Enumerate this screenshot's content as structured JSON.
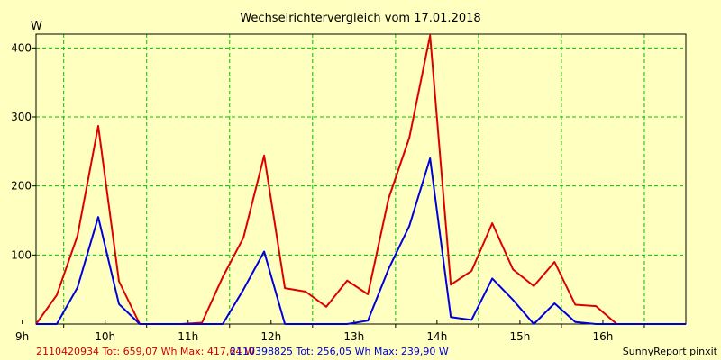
{
  "chart_data": {
    "type": "line",
    "title": "Wechselrichtervergleich vom 17.01.2018",
    "ylabel": "W",
    "ylim": [
      0,
      420
    ],
    "xlim": [
      "08:40",
      "16:30"
    ],
    "yticks": [
      100,
      200,
      300,
      400
    ],
    "xticks": [
      "9h",
      "10h",
      "11h",
      "12h",
      "13h",
      "14h",
      "15h",
      "16h"
    ],
    "grid": true,
    "series": [
      {
        "name": "2110420934",
        "color": "#dd0000",
        "x": [
          "08:40",
          "08:55",
          "09:10",
          "09:25",
          "09:40",
          "09:55",
          "10:10",
          "10:25",
          "10:40",
          "10:55",
          "11:10",
          "11:25",
          "11:40",
          "11:55",
          "12:10",
          "12:25",
          "12:40",
          "12:55",
          "13:10",
          "13:25",
          "13:40",
          "13:55",
          "14:10",
          "14:25",
          "14:40",
          "14:55",
          "15:10",
          "15:25",
          "15:40",
          "15:55",
          "16:10",
          "16:30"
        ],
        "values": [
          0,
          42,
          128,
          287,
          62,
          0,
          0,
          0,
          2,
          68,
          125,
          244,
          52,
          47,
          25,
          63,
          43,
          182,
          270,
          418,
          57,
          77,
          146,
          79,
          55,
          90,
          28,
          26,
          0,
          0,
          0,
          0
        ]
      },
      {
        "name": "2110398825",
        "color": "#0000dd",
        "x": [
          "08:40",
          "08:55",
          "09:10",
          "09:25",
          "09:40",
          "09:55",
          "10:10",
          "10:25",
          "10:40",
          "10:55",
          "11:10",
          "11:25",
          "11:40",
          "11:55",
          "12:10",
          "12:25",
          "12:40",
          "12:55",
          "13:10",
          "13:25",
          "13:40",
          "13:55",
          "14:10",
          "14:25",
          "14:40",
          "14:55",
          "15:10",
          "15:25",
          "15:40",
          "15:55",
          "16:10",
          "16:30"
        ],
        "values": [
          0,
          0,
          53,
          155,
          29,
          0,
          0,
          0,
          0,
          0,
          50,
          105,
          0,
          0,
          0,
          0,
          5,
          80,
          142,
          240,
          10,
          6,
          66,
          35,
          0,
          30,
          3,
          0,
          0,
          0,
          0,
          0
        ]
      }
    ],
    "legend": [
      {
        "text": "2110420934 Tot: 659,07 Wh Max: 417,64 W",
        "color": "#d00000"
      },
      {
        "text": "2110398825 Tot: 256,05 Wh Max: 239,90 W",
        "color": "#0000d0"
      }
    ],
    "legend_placement": "bottom-left",
    "credit": "SunnyReport pinxit"
  }
}
